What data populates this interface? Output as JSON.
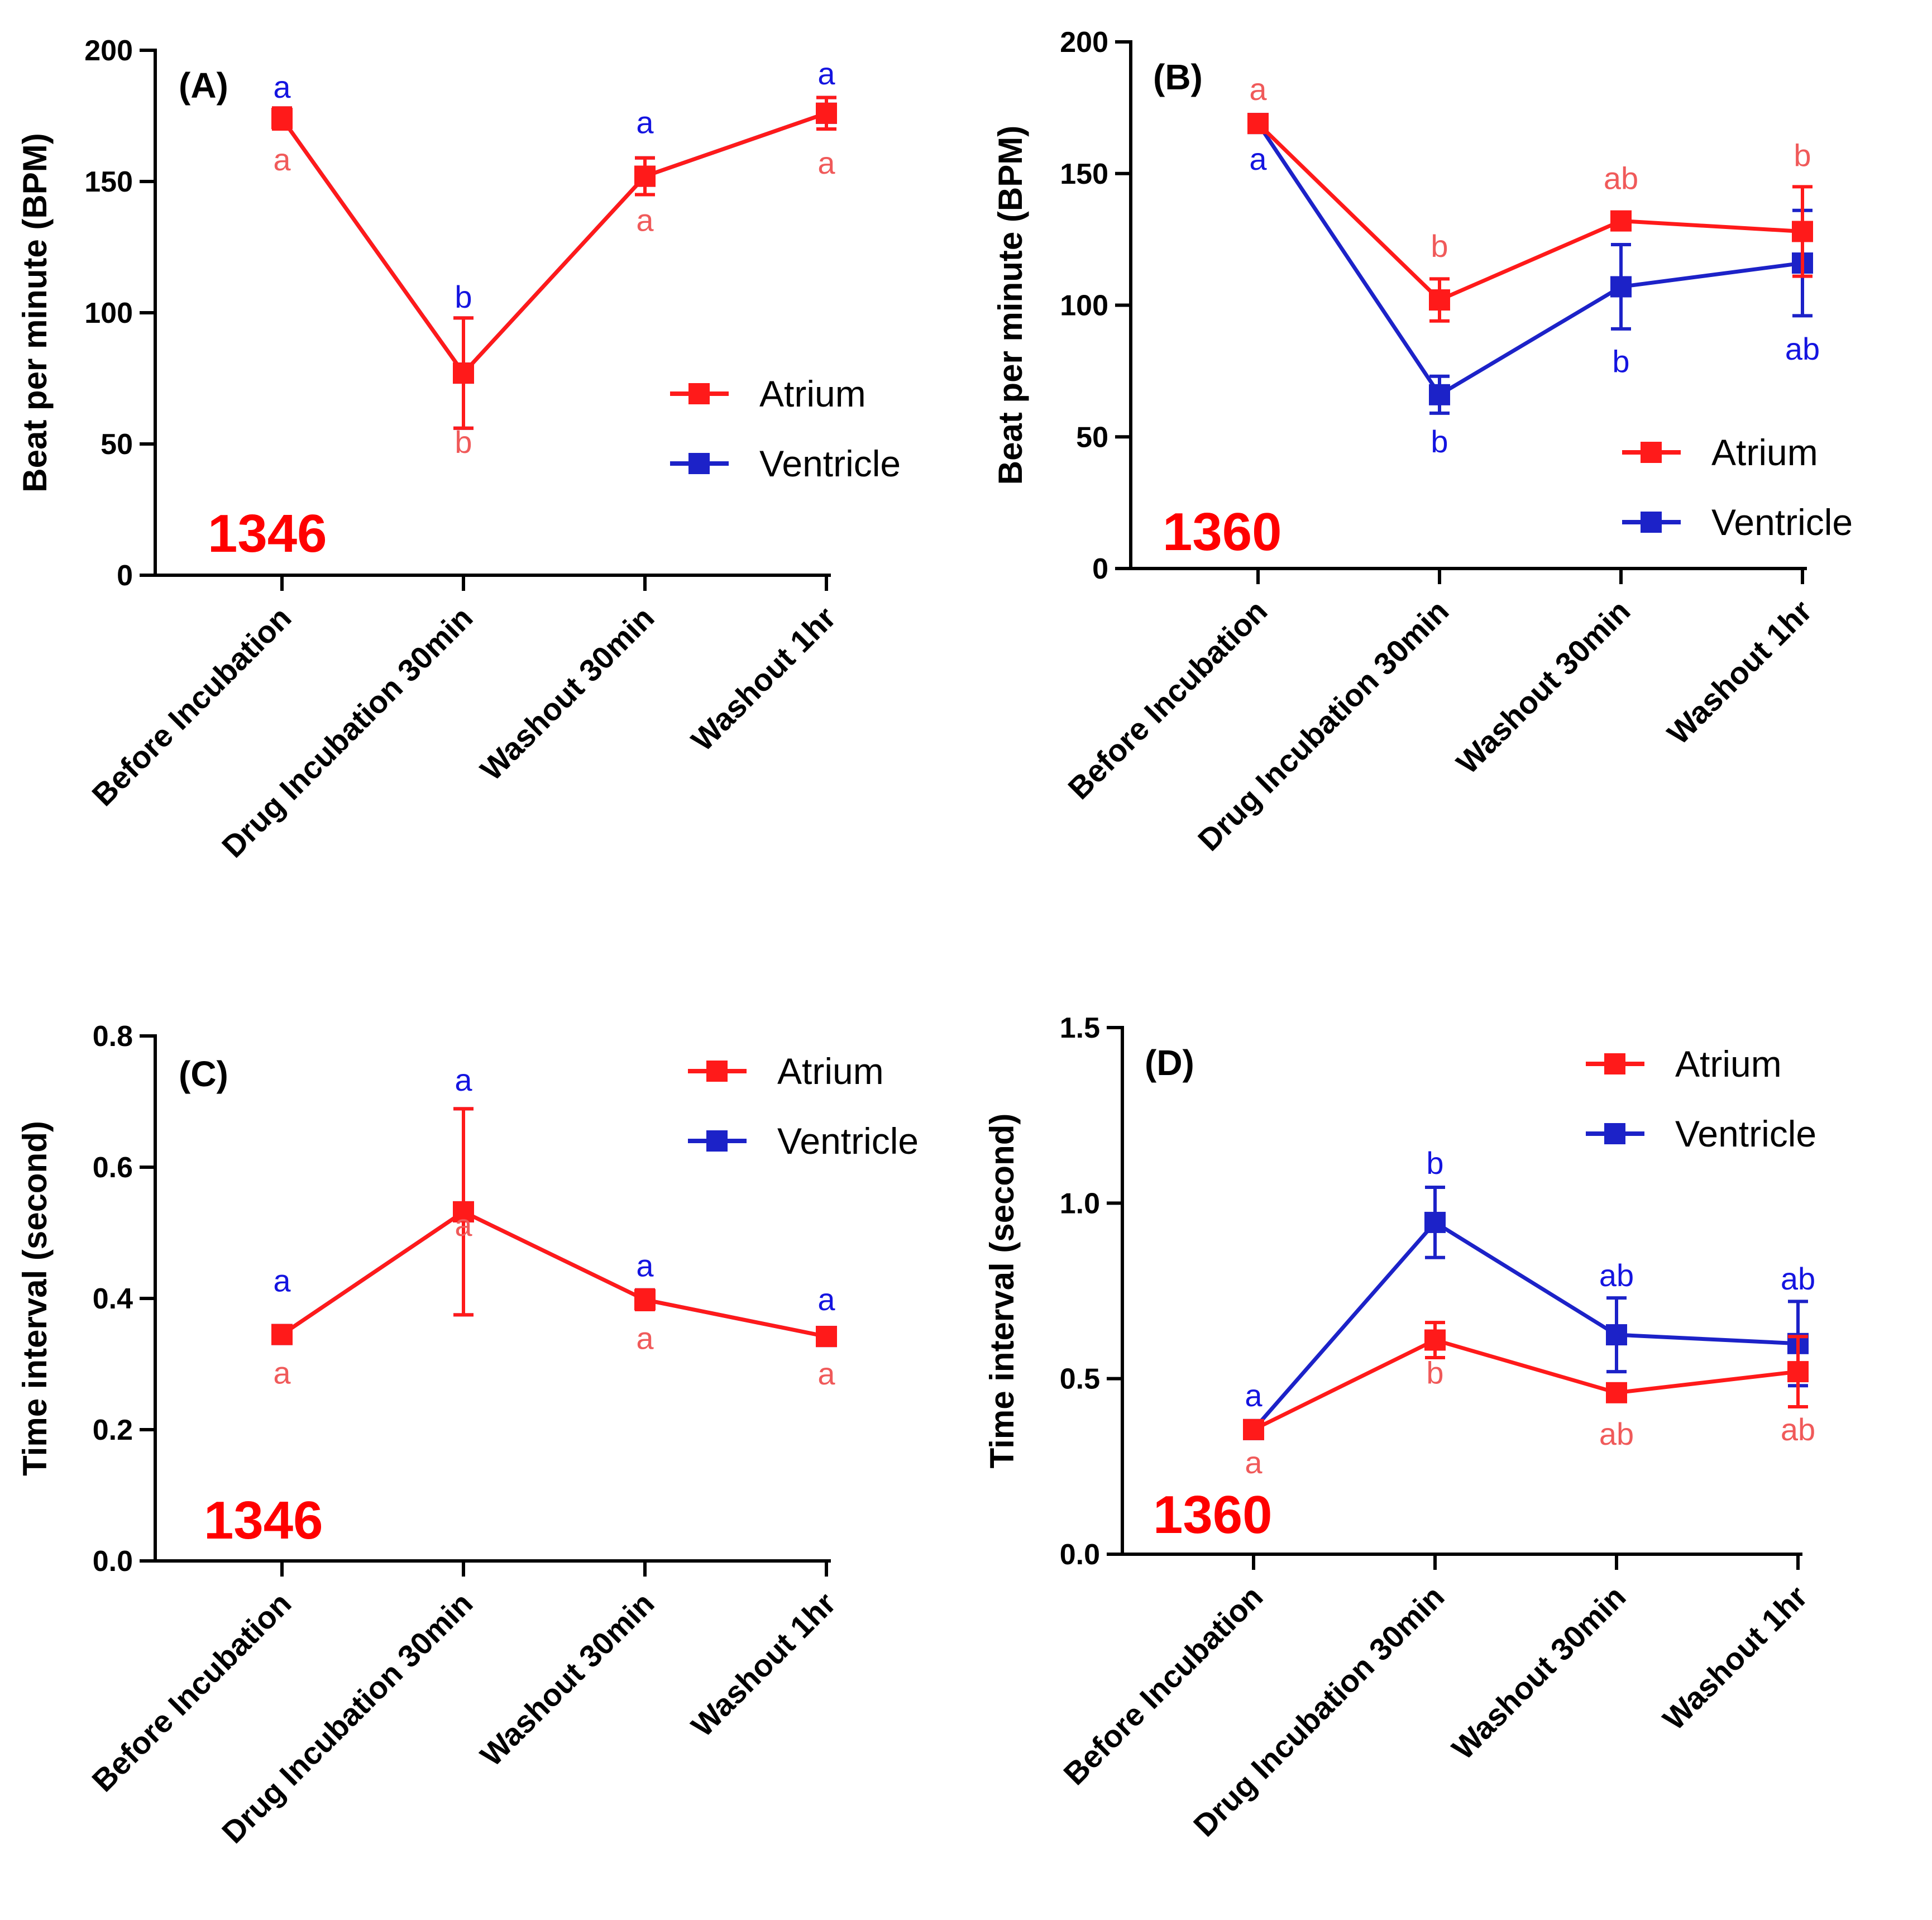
{
  "colors": {
    "atrium": "#ff1a1a",
    "ventricle": "#1c22c8",
    "atrium_letter": "#f05a5a",
    "ventricle_letter": "#1414e0",
    "sample_id": "#ff0000"
  },
  "legend": {
    "atrium": "Atrium",
    "ventricle": "Ventricle"
  },
  "chart_data": [
    {
      "type": "line",
      "panel_label": "(A)",
      "sample_id": "1346",
      "ylabel": "Beat per minute (BPM)",
      "ylim": [
        0,
        200
      ],
      "yticks": [
        "0",
        "50",
        "100",
        "150",
        "200"
      ],
      "categories": [
        "Before Incubation",
        "Drug Incubation 30min",
        "Washout 30min",
        "Washout 1hr"
      ],
      "legend_position": "middle-right",
      "series": [
        {
          "name": "Atrium",
          "color": "#ff1a1a",
          "values": [
            174,
            77,
            152,
            176
          ],
          "err": [
            4,
            21,
            7,
            6
          ],
          "letters": [
            "a",
            "b",
            "a",
            "a"
          ]
        },
        {
          "name": "Ventricle",
          "color": "#1c22c8",
          "values": [
            174,
            77,
            152,
            176
          ],
          "err": [
            4,
            21,
            7,
            6
          ],
          "letters": [
            "a",
            "b",
            "a",
            "a"
          ]
        }
      ]
    },
    {
      "type": "line",
      "panel_label": "(B)",
      "sample_id": "1360",
      "ylabel": "Beat per minute (BPM)",
      "ylim": [
        0,
        200
      ],
      "yticks": [
        "0",
        "50",
        "100",
        "150",
        "200"
      ],
      "categories": [
        "Before Incubation",
        "Drug Incubation 30min",
        "Washout 30min",
        "Washout 1hr"
      ],
      "legend_position": "bottom-right",
      "series": [
        {
          "name": "Atrium",
          "color": "#ff1a1a",
          "values": [
            169,
            102,
            132,
            128
          ],
          "err": [
            2,
            8,
            2,
            17
          ],
          "letters": [
            "a",
            "b",
            "ab",
            "b"
          ]
        },
        {
          "name": "Ventricle",
          "color": "#1c22c8",
          "values": [
            169,
            66,
            107,
            116
          ],
          "err": [
            2,
            7,
            16,
            20
          ],
          "letters": [
            "a",
            "b",
            "b",
            "ab"
          ]
        }
      ]
    },
    {
      "type": "line",
      "panel_label": "(C)",
      "sample_id": "1346",
      "ylabel": "Time interval (second)",
      "ylim": [
        0,
        0.8
      ],
      "yticks": [
        "0.0",
        "0.2",
        "0.4",
        "0.6",
        "0.8"
      ],
      "categories": [
        "Before Incubation",
        "Drug Incubation 30min",
        "Washout 30min",
        "Washout 1hr"
      ],
      "legend_position": "top-right",
      "series": [
        {
          "name": "Atrium",
          "color": "#ff1a1a",
          "values": [
            0.345,
            0.532,
            0.398,
            0.342
          ],
          "err": [
            0.01,
            0.157,
            0.015,
            0.01
          ],
          "letters": [
            "a",
            "a",
            "a",
            "a"
          ]
        },
        {
          "name": "Ventricle",
          "color": "#1c22c8",
          "values": [
            0.345,
            0.532,
            0.398,
            0.342
          ],
          "err": [
            0.01,
            0.157,
            0.015,
            0.01
          ],
          "letters": [
            "a",
            "a",
            "a",
            "a"
          ]
        }
      ]
    },
    {
      "type": "line",
      "panel_label": "(D)",
      "sample_id": "1360",
      "ylabel": "Time interval (second)",
      "ylim": [
        0,
        1.5
      ],
      "yticks": [
        "0.0",
        "0.5",
        "1.0",
        "1.5"
      ],
      "categories": [
        "Before Incubation",
        "Drug Incubation 30min",
        "Washout 30min",
        "Washout 1hr"
      ],
      "legend_position": "top-right",
      "series": [
        {
          "name": "Atrium",
          "color": "#ff1a1a",
          "values": [
            0.355,
            0.61,
            0.46,
            0.52
          ],
          "err": [
            0.02,
            0.05,
            0.02,
            0.1
          ],
          "letters": [
            "a",
            "b",
            "ab",
            "ab"
          ]
        },
        {
          "name": "Ventricle",
          "color": "#1c22c8",
          "values": [
            0.355,
            0.945,
            0.625,
            0.6
          ],
          "err": [
            0.02,
            0.1,
            0.105,
            0.12
          ],
          "letters": [
            "a",
            "b",
            "ab",
            "ab"
          ]
        }
      ]
    }
  ]
}
